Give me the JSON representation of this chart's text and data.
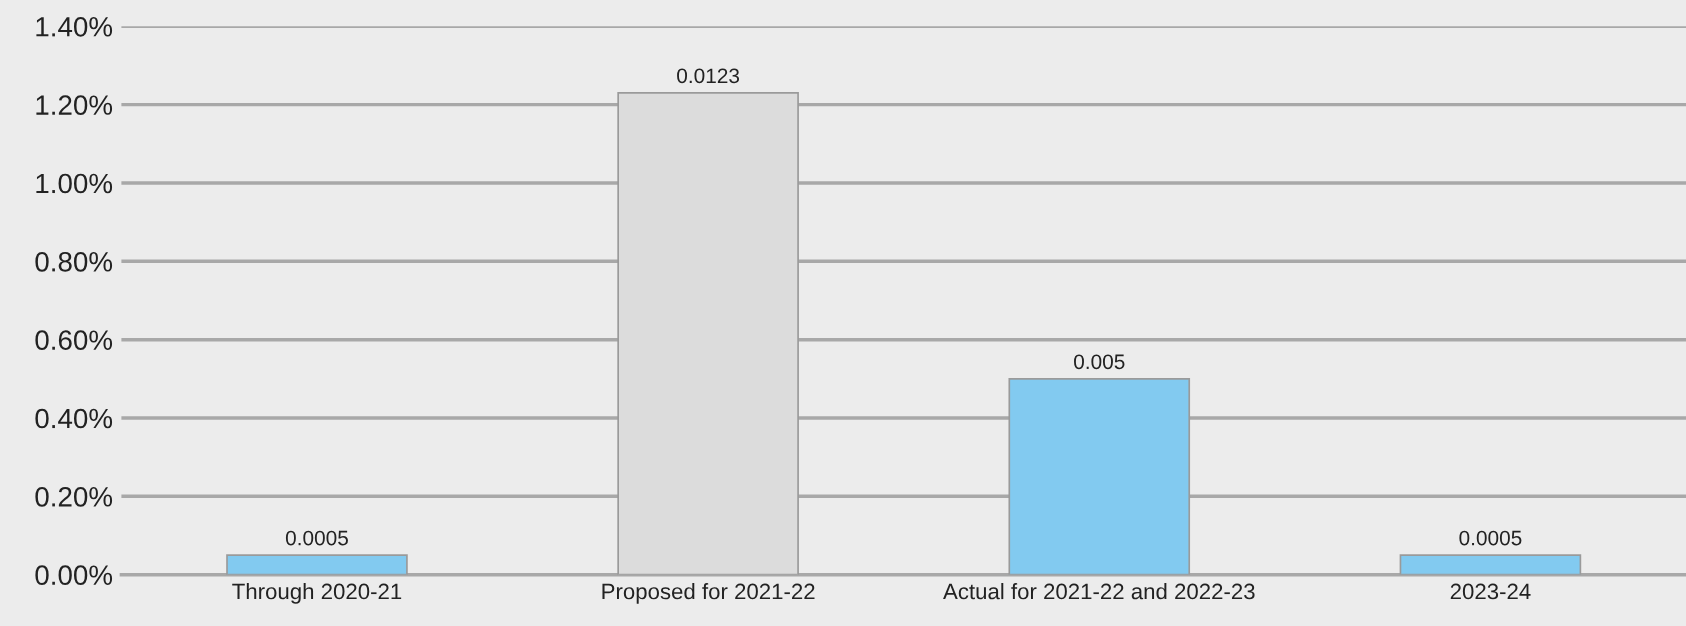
{
  "chart_data": {
    "type": "bar",
    "categories": [
      "Through 2020-21",
      "Proposed for 2021-22",
      "Actual for 2021-22 and 2022-23",
      "2023-24"
    ],
    "values": [
      0.0005,
      0.0123,
      0.005,
      0.0005
    ],
    "colors": [
      "#82caf0",
      "#dcdcdc",
      "#82caf0",
      "#82caf0"
    ],
    "data_labels": true,
    "ylim": [
      0,
      0.014
    ],
    "yticks": [
      {
        "value": 0,
        "label": "0.00%"
      },
      {
        "value": 0.002,
        "label": "0.20%"
      },
      {
        "value": 0.004,
        "label": "0.40%"
      },
      {
        "value": 0.006,
        "label": "0.60%"
      },
      {
        "value": 0.008,
        "label": "0.80%"
      },
      {
        "value": 0.01,
        "label": "1.00%"
      },
      {
        "value": 0.012,
        "label": "1.20%"
      },
      {
        "value": 0.014,
        "label": "1.40%"
      }
    ],
    "grid": "y",
    "legend": false
  }
}
